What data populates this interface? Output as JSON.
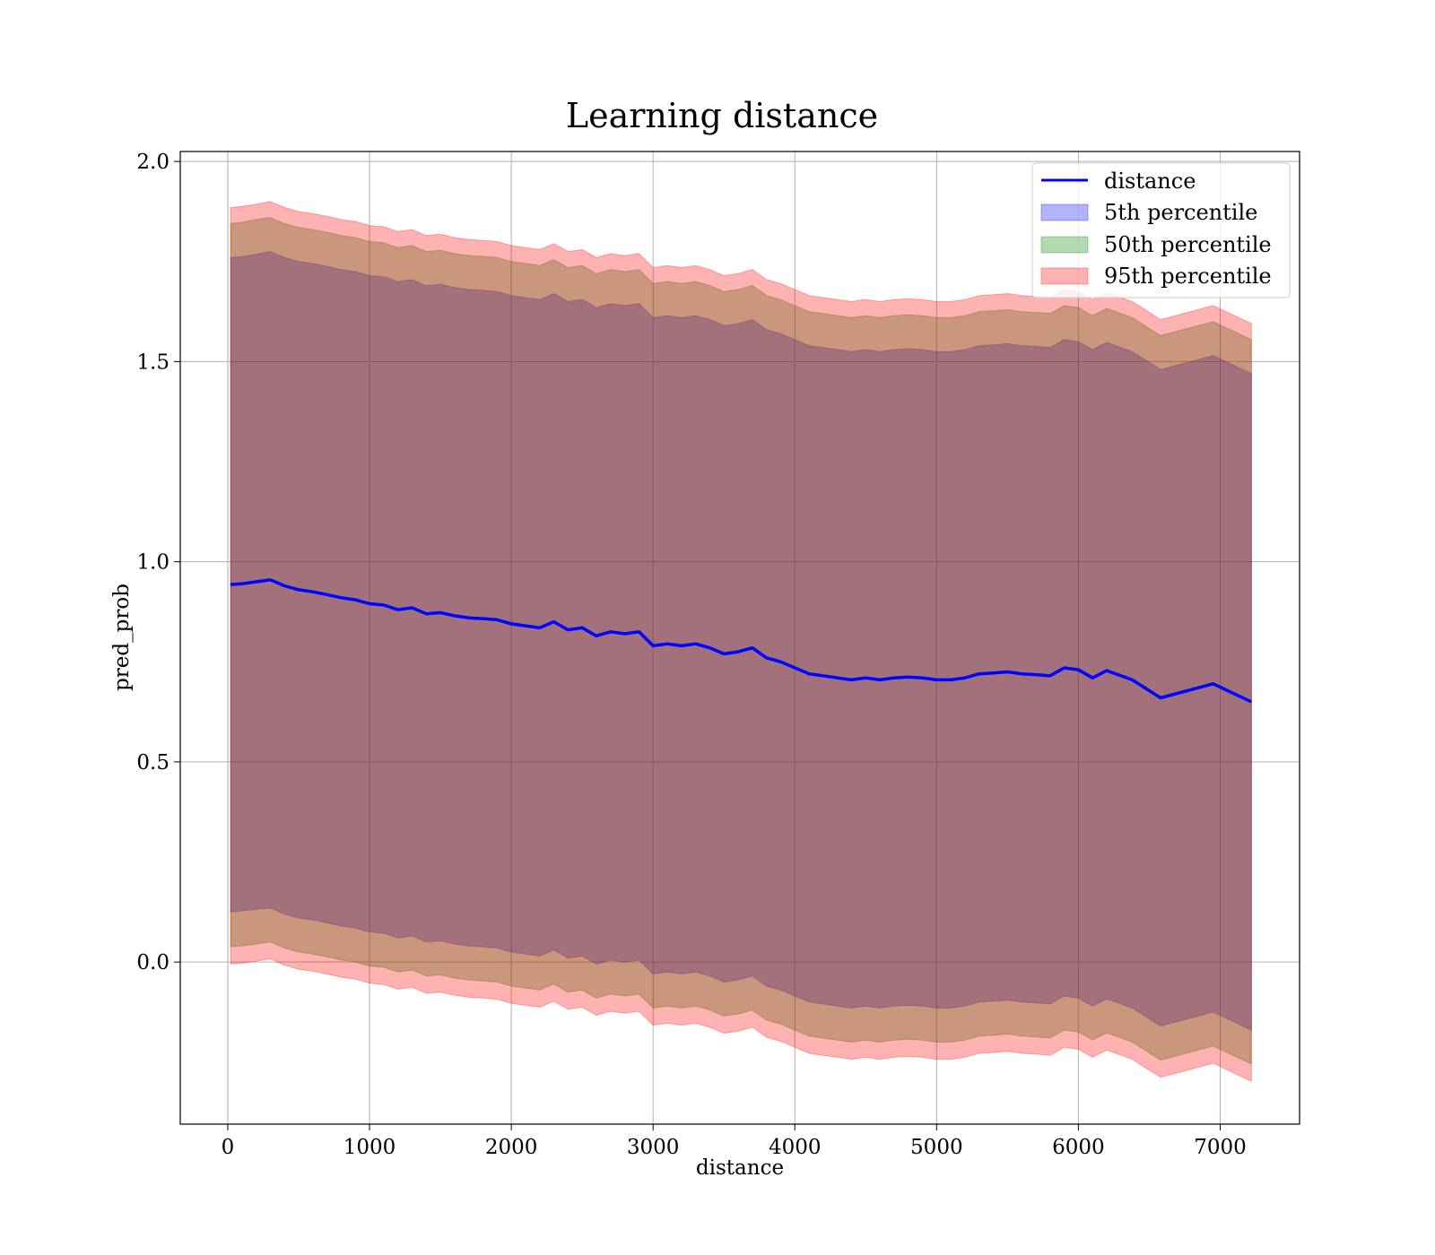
{
  "chart_data": {
    "type": "area",
    "title": "Learning distance",
    "xlabel": "distance",
    "ylabel": "pred_prob",
    "xlim": [
      -335,
      7560
    ],
    "ylim": [
      -0.405,
      2.025
    ],
    "xticks": [
      0,
      1000,
      2000,
      3000,
      4000,
      5000,
      6000,
      7000
    ],
    "xtick_labels": [
      "0",
      "1000",
      "2000",
      "3000",
      "4000",
      "5000",
      "6000",
      "7000"
    ],
    "yticks": [
      0.0,
      0.5,
      1.0,
      1.5,
      2.0
    ],
    "ytick_labels": [
      "0.0",
      "0.5",
      "1.0",
      "1.5",
      "2.0"
    ],
    "grid": true,
    "legend_position": "top-right",
    "legend": [
      {
        "label": "distance",
        "kind": "line",
        "color": "#0000ff"
      },
      {
        "label": "5th percentile",
        "kind": "patch",
        "color": "#0000ff"
      },
      {
        "label": "50th percentile",
        "kind": "patch",
        "color": "#008000"
      },
      {
        "label": "95th percentile",
        "kind": "patch",
        "color": "#ff0000"
      }
    ],
    "x": [
      20,
      100,
      200,
      300,
      400,
      500,
      600,
      700,
      800,
      900,
      1000,
      1100,
      1200,
      1300,
      1400,
      1500,
      1600,
      1700,
      1800,
      1900,
      2000,
      2100,
      2200,
      2300,
      2400,
      2500,
      2600,
      2700,
      2800,
      2900,
      3000,
      3100,
      3200,
      3300,
      3400,
      3500,
      3600,
      3700,
      3800,
      3900,
      4000,
      4100,
      4200,
      4300,
      4400,
      4500,
      4600,
      4700,
      4800,
      4900,
      5000,
      5100,
      5200,
      5300,
      5400,
      5500,
      5600,
      5700,
      5800,
      5900,
      6000,
      6100,
      6200,
      6380,
      6580,
      6950,
      7220
    ],
    "series": [
      {
        "name": "distance",
        "kind": "line",
        "color": "#0000ff",
        "values": [
          0.943,
          0.945,
          0.95,
          0.955,
          0.94,
          0.93,
          0.925,
          0.918,
          0.91,
          0.905,
          0.895,
          0.892,
          0.88,
          0.885,
          0.87,
          0.873,
          0.865,
          0.86,
          0.858,
          0.855,
          0.845,
          0.84,
          0.835,
          0.85,
          0.83,
          0.835,
          0.815,
          0.825,
          0.82,
          0.825,
          0.79,
          0.795,
          0.79,
          0.795,
          0.785,
          0.77,
          0.775,
          0.785,
          0.76,
          0.75,
          0.735,
          0.72,
          0.715,
          0.71,
          0.705,
          0.71,
          0.705,
          0.71,
          0.712,
          0.71,
          0.705,
          0.705,
          0.71,
          0.72,
          0.722,
          0.725,
          0.72,
          0.718,
          0.715,
          0.735,
          0.73,
          0.71,
          0.728,
          0.705,
          0.66,
          0.695,
          0.65
        ]
      },
      {
        "name": "5th percentile",
        "kind": "band",
        "color": "#0000ff",
        "lower": [
          0.125,
          0.128,
          0.132,
          0.135,
          0.12,
          0.11,
          0.105,
          0.098,
          0.09,
          0.085,
          0.075,
          0.072,
          0.06,
          0.065,
          0.05,
          0.053,
          0.045,
          0.04,
          0.038,
          0.035,
          0.025,
          0.02,
          0.015,
          0.03,
          0.01,
          0.015,
          -0.005,
          0.005,
          0.0,
          0.005,
          -0.03,
          -0.025,
          -0.03,
          -0.025,
          -0.035,
          -0.05,
          -0.045,
          -0.035,
          -0.06,
          -0.07,
          -0.085,
          -0.1,
          -0.105,
          -0.11,
          -0.115,
          -0.11,
          -0.115,
          -0.11,
          -0.108,
          -0.11,
          -0.115,
          -0.115,
          -0.11,
          -0.1,
          -0.098,
          -0.095,
          -0.1,
          -0.102,
          -0.105,
          -0.085,
          -0.09,
          -0.11,
          -0.092,
          -0.115,
          -0.16,
          -0.125,
          -0.17
        ],
        "upper": [
          1.76,
          1.762,
          1.768,
          1.775,
          1.76,
          1.75,
          1.745,
          1.738,
          1.73,
          1.725,
          1.715,
          1.712,
          1.7,
          1.705,
          1.69,
          1.693,
          1.685,
          1.68,
          1.678,
          1.675,
          1.665,
          1.66,
          1.655,
          1.67,
          1.65,
          1.655,
          1.635,
          1.645,
          1.64,
          1.645,
          1.61,
          1.615,
          1.61,
          1.615,
          1.605,
          1.59,
          1.595,
          1.605,
          1.58,
          1.57,
          1.555,
          1.54,
          1.535,
          1.53,
          1.525,
          1.53,
          1.525,
          1.53,
          1.532,
          1.53,
          1.525,
          1.525,
          1.53,
          1.54,
          1.542,
          1.545,
          1.54,
          1.538,
          1.535,
          1.555,
          1.55,
          1.53,
          1.548,
          1.525,
          1.48,
          1.515,
          1.47
        ]
      },
      {
        "name": "50th percentile",
        "kind": "band",
        "color": "#008000",
        "lower": [
          0.038,
          0.04,
          0.045,
          0.05,
          0.035,
          0.025,
          0.02,
          0.013,
          0.005,
          0.0,
          -0.01,
          -0.013,
          -0.025,
          -0.02,
          -0.035,
          -0.032,
          -0.04,
          -0.045,
          -0.047,
          -0.05,
          -0.06,
          -0.065,
          -0.07,
          -0.055,
          -0.075,
          -0.07,
          -0.09,
          -0.08,
          -0.085,
          -0.08,
          -0.115,
          -0.11,
          -0.115,
          -0.11,
          -0.12,
          -0.135,
          -0.13,
          -0.12,
          -0.145,
          -0.155,
          -0.17,
          -0.185,
          -0.19,
          -0.195,
          -0.2,
          -0.195,
          -0.2,
          -0.195,
          -0.193,
          -0.195,
          -0.2,
          -0.2,
          -0.195,
          -0.185,
          -0.183,
          -0.18,
          -0.185,
          -0.187,
          -0.19,
          -0.17,
          -0.175,
          -0.195,
          -0.177,
          -0.2,
          -0.245,
          -0.21,
          -0.255
        ],
        "upper": [
          1.845,
          1.848,
          1.855,
          1.86,
          1.845,
          1.835,
          1.83,
          1.823,
          1.815,
          1.81,
          1.8,
          1.797,
          1.785,
          1.79,
          1.775,
          1.778,
          1.77,
          1.765,
          1.763,
          1.76,
          1.75,
          1.745,
          1.74,
          1.755,
          1.735,
          1.74,
          1.72,
          1.73,
          1.725,
          1.73,
          1.695,
          1.7,
          1.695,
          1.7,
          1.69,
          1.675,
          1.68,
          1.69,
          1.665,
          1.655,
          1.64,
          1.625,
          1.62,
          1.615,
          1.61,
          1.615,
          1.61,
          1.615,
          1.617,
          1.615,
          1.61,
          1.61,
          1.615,
          1.625,
          1.627,
          1.63,
          1.625,
          1.623,
          1.62,
          1.64,
          1.635,
          1.615,
          1.633,
          1.61,
          1.565,
          1.6,
          1.555
        ]
      },
      {
        "name": "95th percentile",
        "kind": "band",
        "color": "#ff0000",
        "lower": [
          -0.005,
          -0.003,
          0.002,
          0.008,
          -0.008,
          -0.018,
          -0.023,
          -0.03,
          -0.038,
          -0.043,
          -0.053,
          -0.056,
          -0.068,
          -0.063,
          -0.078,
          -0.075,
          -0.083,
          -0.088,
          -0.09,
          -0.093,
          -0.103,
          -0.108,
          -0.113,
          -0.098,
          -0.118,
          -0.113,
          -0.133,
          -0.123,
          -0.128,
          -0.123,
          -0.158,
          -0.153,
          -0.158,
          -0.153,
          -0.163,
          -0.178,
          -0.173,
          -0.163,
          -0.188,
          -0.198,
          -0.213,
          -0.228,
          -0.233,
          -0.238,
          -0.243,
          -0.238,
          -0.243,
          -0.238,
          -0.236,
          -0.238,
          -0.243,
          -0.243,
          -0.238,
          -0.228,
          -0.226,
          -0.223,
          -0.228,
          -0.23,
          -0.233,
          -0.213,
          -0.218,
          -0.238,
          -0.22,
          -0.243,
          -0.288,
          -0.253,
          -0.298
        ],
        "upper": [
          1.885,
          1.888,
          1.893,
          1.9,
          1.885,
          1.875,
          1.87,
          1.863,
          1.855,
          1.85,
          1.84,
          1.837,
          1.825,
          1.83,
          1.815,
          1.818,
          1.81,
          1.805,
          1.803,
          1.8,
          1.79,
          1.785,
          1.78,
          1.795,
          1.775,
          1.78,
          1.76,
          1.77,
          1.765,
          1.77,
          1.735,
          1.74,
          1.735,
          1.74,
          1.73,
          1.715,
          1.72,
          1.73,
          1.705,
          1.695,
          1.68,
          1.665,
          1.66,
          1.655,
          1.65,
          1.655,
          1.65,
          1.655,
          1.657,
          1.655,
          1.65,
          1.65,
          1.655,
          1.665,
          1.667,
          1.67,
          1.665,
          1.663,
          1.66,
          1.68,
          1.675,
          1.655,
          1.673,
          1.65,
          1.605,
          1.64,
          1.595
        ]
      }
    ]
  }
}
